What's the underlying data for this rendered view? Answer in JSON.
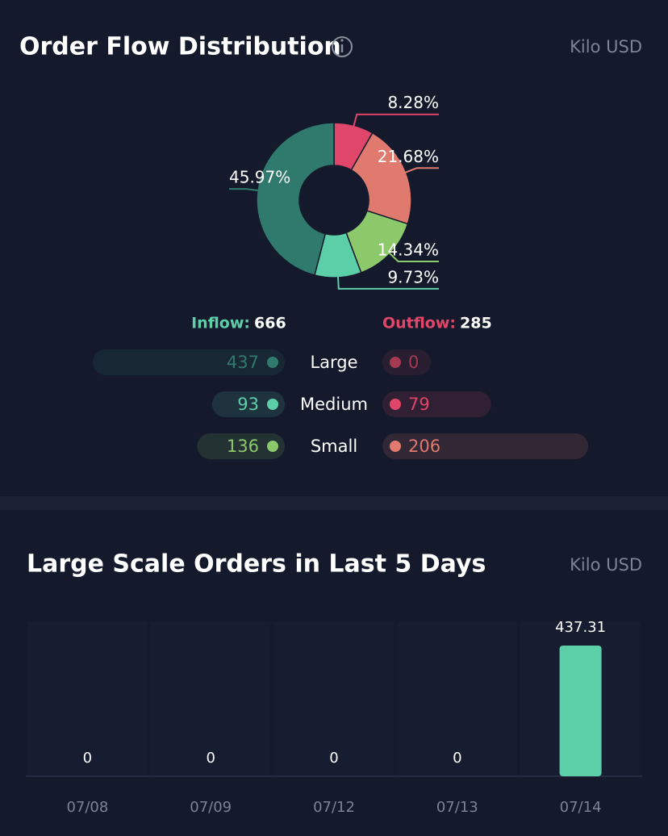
{
  "chart_data": [
    {
      "type": "donut",
      "title": "Order Flow Distribution",
      "unit": "Kilo USD",
      "values": [
        8.28,
        21.68,
        14.34,
        9.73,
        45.97
      ],
      "value_labels": [
        "8.28%",
        "21.68%",
        "14.34%",
        "9.73%",
        "45.97%"
      ],
      "colors": [
        "#e0456a",
        "#e07a6e",
        "#8cc96a",
        "#5ccfa8",
        "#2f7a6c"
      ]
    },
    {
      "type": "bar",
      "title": "Large Scale Orders in Last 5 Days",
      "unit": "Kilo USD",
      "categories": [
        "07/08",
        "07/09",
        "07/12",
        "07/13",
        "07/14"
      ],
      "values": [
        0,
        0,
        0,
        0,
        437.31
      ],
      "color": "#5ccfa8"
    }
  ],
  "flow": {
    "inflow": {
      "label": "Inflow:",
      "total": 666,
      "color": "#5ccfa8"
    },
    "outflow": {
      "label": "Outflow:",
      "total": 285,
      "color": "#e0456a"
    },
    "rows": [
      {
        "name": "Large",
        "inflow": 437,
        "outflow": 0,
        "inflow_color": "#2f7a6c",
        "outflow_color": "#a33a50"
      },
      {
        "name": "Medium",
        "inflow": 93,
        "outflow": 79,
        "inflow_color": "#5ccfa8",
        "outflow_color": "#e0456a"
      },
      {
        "name": "Small",
        "inflow": 136,
        "outflow": 206,
        "inflow_color": "#8cc96a",
        "outflow_color": "#e07a6e"
      }
    ]
  }
}
